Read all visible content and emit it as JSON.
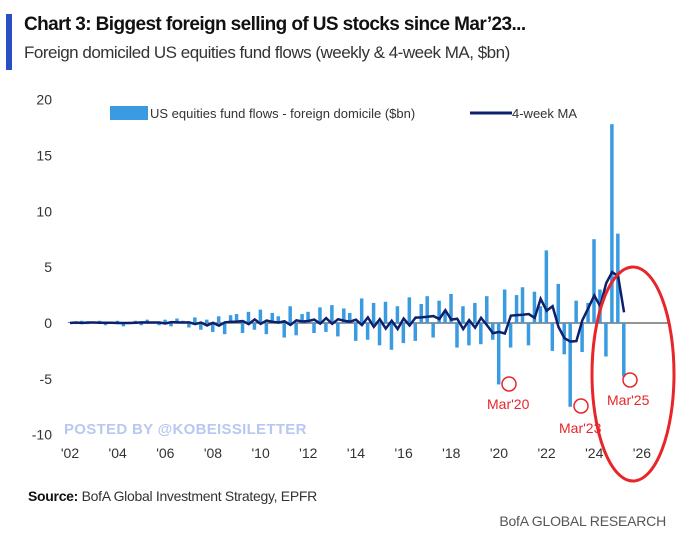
{
  "header": {
    "title": "Chart 3: Biggest foreign selling of US stocks since Mar’23...",
    "subtitle": "Foreign domiciled US equities fund flows (weekly & 4-week MA, $bn)"
  },
  "footer": {
    "source_label": "Source:",
    "source_text": " BofA Global Investment Strategy, EPFR",
    "brand": "BofA GLOBAL RESEARCH",
    "watermark": "POSTED BY @KOBEISSILETTER"
  },
  "colors": {
    "bars": "#3a9be0",
    "ma": "#0e1f6b",
    "annotation": "#e8262a",
    "zero": "#555555"
  },
  "chart_data": {
    "type": "bar",
    "title": "Chart 3: Biggest foreign selling of US stocks since Mar’23...",
    "xlabel": "",
    "ylabel": "",
    "ylim": [
      -10,
      20
    ],
    "xlim": [
      2002,
      2027
    ],
    "yticks": [
      "20",
      "15",
      "10",
      "5",
      "0",
      "-5",
      "-10"
    ],
    "ytick_values": [
      20,
      15,
      10,
      5,
      0,
      -5,
      -10
    ],
    "xticks": [
      "'02",
      "'04",
      "'06",
      "'08",
      "'10",
      "'12",
      "'14",
      "'16",
      "'18",
      "'20",
      "'22",
      "'24",
      "'26"
    ],
    "xtick_values": [
      2002,
      2004,
      2006,
      2008,
      2010,
      2012,
      2014,
      2016,
      2018,
      2020,
      2022,
      2024,
      2026
    ],
    "legend": {
      "position": "top",
      "entries": [
        "US equities fund flows - foreign domicile ($bn)",
        "4-week MA"
      ]
    },
    "series": [
      {
        "name": "US equities fund flows - foreign domicile ($bn)",
        "x_start": 2002,
        "x_step": 0.25,
        "values": [
          0.1,
          -0.1,
          0.2,
          -0.1,
          0.1,
          0.2,
          -0.2,
          0.1,
          0.2,
          -0.3,
          0.1,
          0.2,
          -0.2,
          0.3,
          0.1,
          -0.2,
          0.3,
          -0.3,
          0.4,
          0.2,
          -0.4,
          0.5,
          -0.6,
          0.3,
          -0.8,
          0.6,
          -1.0,
          0.7,
          0.8,
          -0.9,
          1.0,
          -0.6,
          1.2,
          -1.0,
          0.9,
          0.6,
          -1.3,
          1.5,
          -1.1,
          0.8,
          1.0,
          -0.9,
          1.4,
          -0.8,
          1.6,
          -1.2,
          1.3,
          0.9,
          -1.6,
          2.2,
          -1.5,
          1.8,
          -2.0,
          1.9,
          -2.4,
          1.5,
          -1.8,
          2.3,
          -1.6,
          1.7,
          2.4,
          -1.3,
          2.0,
          1.1,
          2.6,
          -2.2,
          1.5,
          -2.0,
          1.8,
          -1.9,
          2.4,
          -1.5,
          -5.5,
          3.0,
          -2.2,
          2.5,
          3.2,
          -2.0,
          2.8,
          1.5,
          6.5,
          -2.5,
          3.5,
          -2.8,
          -7.5,
          2.0,
          -2.6,
          1.8,
          7.5,
          3.0,
          -3.0,
          17.8,
          8.0,
          -4.8
        ]
      }
    ],
    "annotations": [
      "Mar'20",
      "Mar'23",
      "Mar'25"
    ]
  }
}
